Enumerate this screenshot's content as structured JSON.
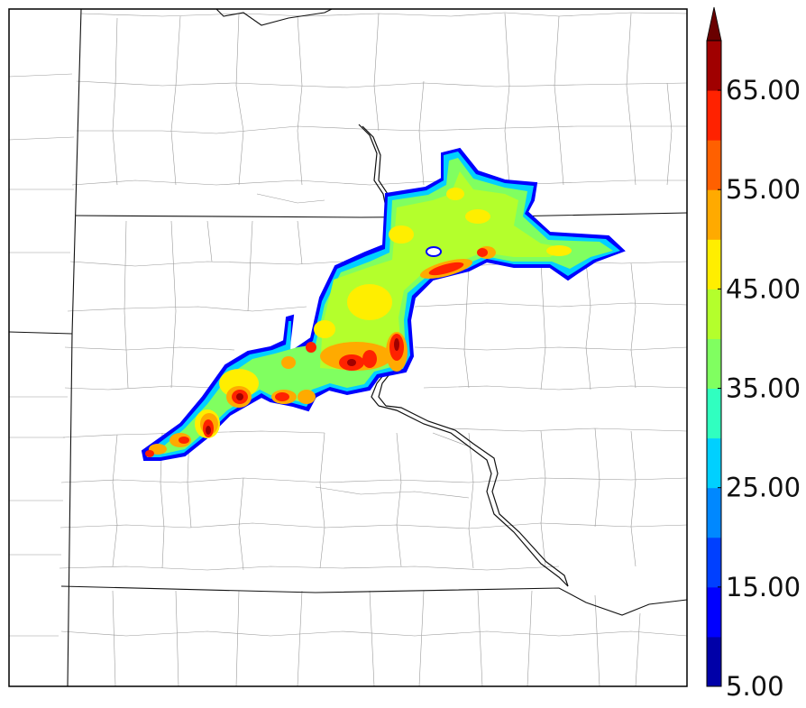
{
  "colorbar": {
    "levels": [
      5,
      10,
      15,
      20,
      25,
      30,
      35,
      40,
      45,
      50,
      55,
      60,
      65,
      70
    ],
    "colors": [
      "#0000a8",
      "#0000ff",
      "#0040ff",
      "#0088ff",
      "#00d0ff",
      "#30ffc0",
      "#80ff60",
      "#b4ff2c",
      "#ffee00",
      "#ffaa00",
      "#ff6000",
      "#ff2200",
      "#a00000"
    ],
    "extend_color": "#6a0000",
    "extend": "max",
    "tick_labels": [
      "5.00",
      "15.00",
      "25.00",
      "35.00",
      "45.00",
      "55.00",
      "65.00"
    ]
  },
  "map": {
    "type": "reflectivity-contour-overlay",
    "base": "state and county boundaries"
  }
}
